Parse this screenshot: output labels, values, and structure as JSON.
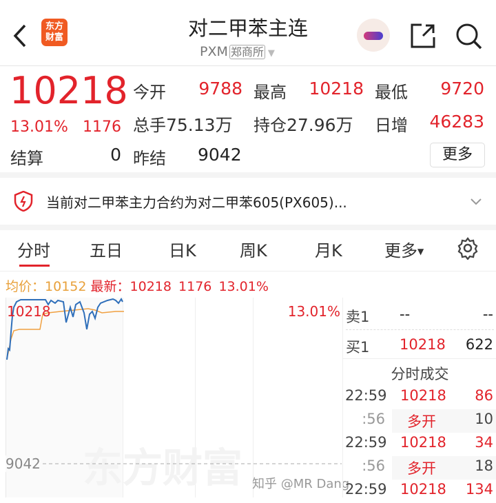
{
  "header": {
    "title": "对二甲苯主连",
    "code": "PXM",
    "exchange": "郑商所",
    "logo_text": [
      "东方",
      "财富"
    ],
    "brand_color": "#f05a22"
  },
  "quote": {
    "price": "10218",
    "change_pct": "13.01%",
    "change": "1176",
    "open_label": "今开",
    "open": "9788",
    "high_label": "最高",
    "high": "10218",
    "low_label": "最低",
    "low": "9720",
    "volume_label": "总手",
    "volume": "75.13万",
    "oi_label": "持仓",
    "oi": "27.96万",
    "daily_inc_label": "日增",
    "daily_inc": "46283",
    "settle_label": "结算",
    "settle": "0",
    "prev_settle_label": "昨结",
    "prev_settle": "9042",
    "more_button": "更多"
  },
  "notice": {
    "text": "当前对二甲苯主力合约为对二甲苯605(PX605)..."
  },
  "tabs": [
    {
      "label": "分时",
      "active": true
    },
    {
      "label": "五日"
    },
    {
      "label": "日K"
    },
    {
      "label": "周K"
    },
    {
      "label": "月K"
    },
    {
      "label": "更多"
    }
  ],
  "info_line": {
    "avg_label": "均价：",
    "avg": "10152",
    "latest_label": "最新：",
    "latest": "10218",
    "change": "1176",
    "pct": "13.01%"
  },
  "chart": {
    "top_price": "10218",
    "top_pct": "13.01%",
    "base_price": "9042",
    "price_color": "#2f6fba",
    "avg_color": "#f0a040",
    "watermark": "东方财富"
  },
  "orderbook": {
    "sell_label": "卖1",
    "sell_price": "--",
    "sell_vol": "--",
    "buy_label": "买1",
    "buy_price": "10218",
    "buy_vol": "622"
  },
  "trades": {
    "title": "分时成交",
    "rows": [
      {
        "time": "22:59",
        "price": "10218",
        "vol": "86",
        "vol_red": true
      },
      {
        "time": ":56",
        "price": "多开",
        "vol": "10",
        "vol_red": false
      },
      {
        "time": "22:59",
        "price": "10218",
        "vol": "34",
        "vol_red": true
      },
      {
        "time": ":56",
        "price": "多开",
        "vol": "18",
        "vol_red": false
      },
      {
        "time": "22:59",
        "price": "10218",
        "vol": "134",
        "vol_red": true
      }
    ]
  },
  "credit_watermark": "知乎 @MR Dang"
}
